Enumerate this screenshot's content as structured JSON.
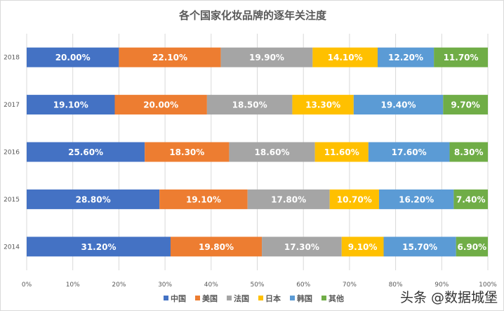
{
  "chart_data": {
    "type": "bar",
    "orientation": "horizontal",
    "stacked": true,
    "title": "各个国家化妆品牌的逐年关注度",
    "categories": [
      "2018",
      "2017",
      "2016",
      "2015",
      "2014"
    ],
    "series": [
      {
        "name": "中国",
        "color": "#4472C4",
        "values": [
          20.0,
          19.1,
          25.6,
          28.8,
          31.2
        ]
      },
      {
        "name": "美国",
        "color": "#ED7D31",
        "values": [
          22.1,
          20.0,
          18.3,
          19.1,
          19.8
        ]
      },
      {
        "name": "法国",
        "color": "#A5A5A5",
        "values": [
          19.9,
          18.5,
          18.6,
          17.8,
          17.3
        ]
      },
      {
        "name": "日本",
        "color": "#FFC000",
        "values": [
          14.1,
          13.3,
          11.6,
          10.7,
          9.1
        ]
      },
      {
        "name": "韩国",
        "color": "#5B9BD5",
        "values": [
          12.2,
          19.4,
          17.6,
          16.2,
          15.7
        ]
      },
      {
        "name": "其他",
        "color": "#70AD47",
        "values": [
          11.7,
          9.7,
          8.3,
          7.4,
          6.9
        ]
      }
    ],
    "xlim": [
      0,
      100
    ],
    "xticks": [
      "0%",
      "10%",
      "20%",
      "30%",
      "40%",
      "50%",
      "60%",
      "70%",
      "80%",
      "90%",
      "100%"
    ],
    "grid": true,
    "legend": "bottom"
  },
  "watermark": "头条 @数据城堡"
}
